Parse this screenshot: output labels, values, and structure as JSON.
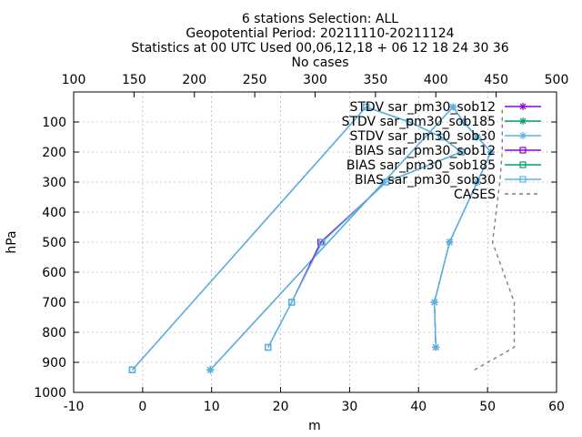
{
  "chart_data": {
    "type": "line",
    "title_lines": [
      "6 stations Selection: ALL",
      "Geopotential  Period: 20211110-20211124",
      "Statistics at 00 UTC  Used 00,06,12,18 + 06 12 18 24 30 36",
      "No cases"
    ],
    "xlabel": "m",
    "ylabel": "hPa",
    "x_range": [
      -10,
      60
    ],
    "x_ticks": [
      -10,
      0,
      10,
      20,
      30,
      40,
      50,
      60
    ],
    "y_range": [
      0,
      1000
    ],
    "y_reversed": true,
    "y_ticks": [
      100,
      200,
      300,
      400,
      500,
      600,
      700,
      800,
      900,
      1000
    ],
    "x2_range": [
      100,
      500
    ],
    "x2_ticks": [
      100,
      150,
      200,
      250,
      300,
      350,
      400,
      450,
      500
    ],
    "grid": true,
    "legend_position": "top-right",
    "series": [
      {
        "name": "STDV sar_pm30_sob12",
        "axis": "x1",
        "color": "#9400d3",
        "marker": "star",
        "points": [
          [
            42.5,
            850
          ],
          [
            42.3,
            700
          ],
          [
            44.5,
            500
          ],
          [
            48.5,
            300
          ],
          [
            50.5,
            200
          ],
          [
            48.5,
            150
          ],
          [
            46.5,
            100
          ],
          [
            45.0,
            50
          ],
          [
            9.8,
            925
          ]
        ]
      },
      {
        "name": "STDV sar_pm30_sob185",
        "axis": "x1",
        "color": "#009e73",
        "marker": "star",
        "points": [
          [
            42.5,
            850
          ],
          [
            42.3,
            700
          ],
          [
            44.5,
            500
          ],
          [
            48.5,
            300
          ],
          [
            50.5,
            200
          ],
          [
            48.5,
            150
          ],
          [
            46.5,
            100
          ],
          [
            45.0,
            50
          ],
          [
            9.8,
            925
          ]
        ]
      },
      {
        "name": "STDV sar_pm30_sob30",
        "axis": "x1",
        "color": "#56b4e9",
        "marker": "star",
        "points": [
          [
            42.5,
            850
          ],
          [
            42.3,
            700
          ],
          [
            44.5,
            500
          ],
          [
            48.5,
            300
          ],
          [
            50.5,
            200
          ],
          [
            48.5,
            150
          ],
          [
            46.5,
            100
          ],
          [
            45.0,
            50
          ],
          [
            9.8,
            925
          ]
        ]
      },
      {
        "name": "BIAS sar_pm30_sob12",
        "axis": "x1",
        "color": "#9400d3",
        "marker": "square",
        "points": [
          [
            18.2,
            850
          ],
          [
            21.6,
            700
          ],
          [
            25.8,
            500
          ],
          [
            35.3,
            300
          ],
          [
            46.2,
            200
          ],
          [
            43.3,
            150
          ],
          [
            38.7,
            100
          ],
          [
            32.4,
            50
          ],
          [
            -1.5,
            925
          ]
        ]
      },
      {
        "name": "BIAS sar_pm30_sob185",
        "axis": "x1",
        "color": "#009e73",
        "marker": "square",
        "points": [
          [
            18.2,
            850
          ],
          [
            21.6,
            700
          ],
          [
            26.0,
            500
          ],
          [
            35.3,
            300
          ],
          [
            46.2,
            200
          ],
          [
            43.3,
            150
          ],
          [
            38.7,
            100
          ],
          [
            32.4,
            50
          ],
          [
            -1.5,
            925
          ]
        ]
      },
      {
        "name": "BIAS sar_pm30_sob30",
        "axis": "x1",
        "color": "#56b4e9",
        "marker": "square",
        "points": [
          [
            18.2,
            850
          ],
          [
            21.6,
            700
          ],
          [
            26.0,
            500
          ],
          [
            35.3,
            300
          ],
          [
            46.2,
            200
          ],
          [
            43.3,
            150
          ],
          [
            38.7,
            100
          ],
          [
            32.4,
            50
          ],
          [
            -1.5,
            925
          ]
        ]
      },
      {
        "name": "CASES",
        "axis": "x2",
        "color": "#808080",
        "marker": "none",
        "dashed": true,
        "points": [
          [
            432,
            925
          ],
          [
            465,
            850
          ],
          [
            465,
            700
          ],
          [
            447,
            500
          ],
          [
            450,
            400
          ],
          [
            453,
            300
          ],
          [
            455,
            200
          ],
          [
            455,
            150
          ],
          [
            455,
            100
          ],
          [
            455,
            50
          ]
        ]
      }
    ]
  }
}
